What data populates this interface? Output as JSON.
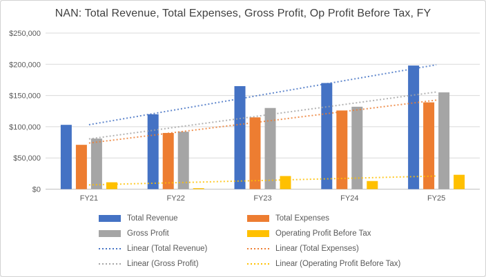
{
  "title": "NAN: Total Revenue, Total Expenses, Gross Profit, Op Profit Before Tax, FY",
  "chart_data": {
    "type": "bar",
    "title": "NAN: Total Revenue, Total Expenses, Gross Profit, Op Profit Before Tax, FY",
    "categories": [
      "FY21",
      "FY22",
      "FY23",
      "FY24",
      "FY25"
    ],
    "series": [
      {
        "name": "Total Revenue",
        "color": "#4472C4",
        "values": [
          103000,
          120000,
          165000,
          170000,
          198000
        ]
      },
      {
        "name": "Total Expenses",
        "color": "#ED7D31",
        "values": [
          71000,
          90000,
          115000,
          126000,
          139000
        ]
      },
      {
        "name": "Gross Profit",
        "color": "#A5A5A5",
        "values": [
          81000,
          92000,
          130000,
          132000,
          155000
        ]
      },
      {
        "name": "Operating Profit Before Tax",
        "color": "#FFC000",
        "values": [
          11000,
          1500,
          21000,
          13000,
          23000
        ]
      }
    ],
    "trendlines": [
      {
        "name": "Linear (Total Revenue)",
        "series": "Total Revenue",
        "color": "#4472C4"
      },
      {
        "name": "Linear (Total Expenses)",
        "series": "Total Expenses",
        "color": "#ED7D31"
      },
      {
        "name": "Linear (Gross Profit)",
        "series": "Gross Profit",
        "color": "#A5A5A5"
      },
      {
        "name": "Linear (Operating Profit Before Tax)",
        "series": "Operating Profit Before Tax",
        "color": "#FFC000"
      }
    ],
    "y_axis": {
      "min": 0,
      "max": 250000,
      "step": 50000,
      "tick_labels": [
        "$0",
        "$50,000",
        "$100,000",
        "$150,000",
        "$200,000",
        "$250,000"
      ]
    },
    "xlabel": "",
    "ylabel": "",
    "grid": true,
    "legend_position": "bottom",
    "grid_color": "#D9D9D9",
    "axis_line_color": "#BFBFBF",
    "axis_text_color": "#595959",
    "title_color": "#404040"
  },
  "legend": {
    "items": [
      {
        "label": "Total Revenue",
        "color": "#4472C4",
        "kind": "bar"
      },
      {
        "label": "Total Expenses",
        "color": "#ED7D31",
        "kind": "bar"
      },
      {
        "label": "Gross Profit",
        "color": "#A5A5A5",
        "kind": "bar"
      },
      {
        "label": "Operating Profit Before Tax",
        "color": "#FFC000",
        "kind": "bar"
      },
      {
        "label": "Linear (Total Revenue)",
        "color": "#4472C4",
        "kind": "dotted"
      },
      {
        "label": "Linear (Total Expenses)",
        "color": "#ED7D31",
        "kind": "dotted"
      },
      {
        "label": "Linear (Gross Profit)",
        "color": "#A5A5A5",
        "kind": "dotted"
      },
      {
        "label": "Linear (Operating Profit Before Tax)",
        "color": "#FFC000",
        "kind": "dotted"
      }
    ]
  }
}
